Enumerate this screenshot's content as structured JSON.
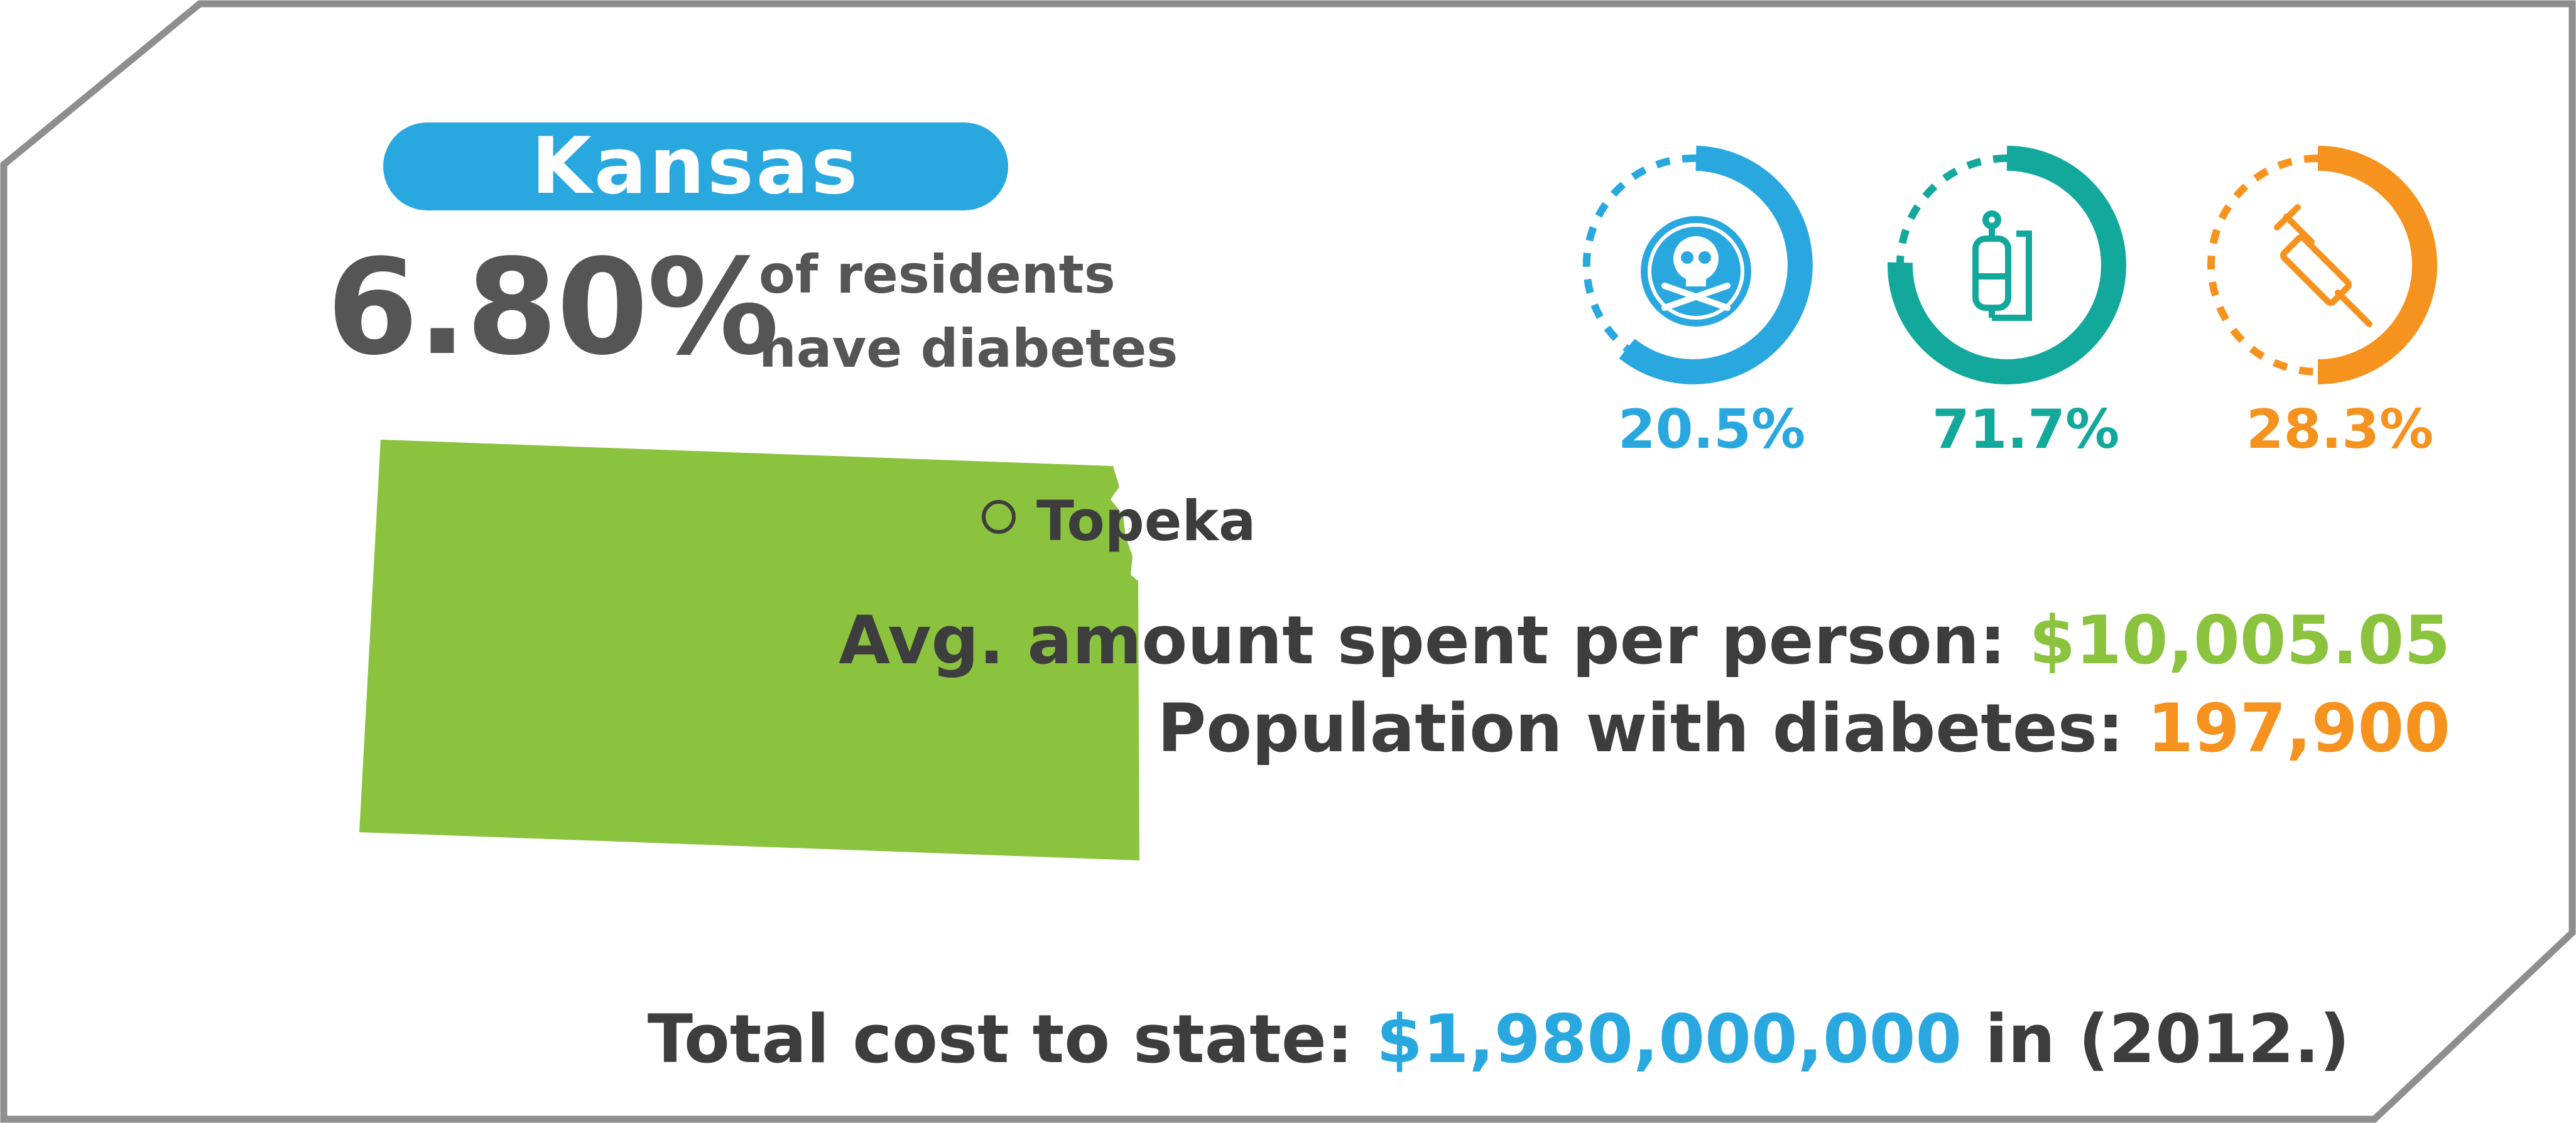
{
  "state": {
    "name": "Kansas",
    "capital": "Topeka",
    "map_color": "#8bc33f"
  },
  "prevalence": {
    "value": "6.80%",
    "note_line1": "of residents",
    "note_line2": "have diabetes"
  },
  "gauges": [
    {
      "label": "20.5%",
      "percent": 20.5,
      "icon": "skull-crossbones-icon",
      "color": "#29a8e0"
    },
    {
      "label": "71.7%",
      "percent": 71.7,
      "icon": "iv-bag-icon",
      "color": "#12a89c"
    },
    {
      "label": "28.3%",
      "percent": 28.3,
      "icon": "syringe-icon",
      "color": "#f6921e"
    }
  ],
  "stats": {
    "avg_spent_label": "Avg. amount spent per person: ",
    "avg_spent_value": "$10,005.05",
    "population_label": "Population with diabetes: ",
    "population_value": "197,900"
  },
  "total": {
    "label": "Total cost to state: ",
    "value": "$1,980,000,000",
    "suffix": " in (2012.)"
  },
  "colors": {
    "blue": "#29a8e0",
    "teal": "#12a89c",
    "orange": "#f6921e",
    "green": "#8bc33f",
    "dark_text": "#3d3d3d",
    "grey_text": "#555555",
    "frame": "#8e8e8e"
  }
}
